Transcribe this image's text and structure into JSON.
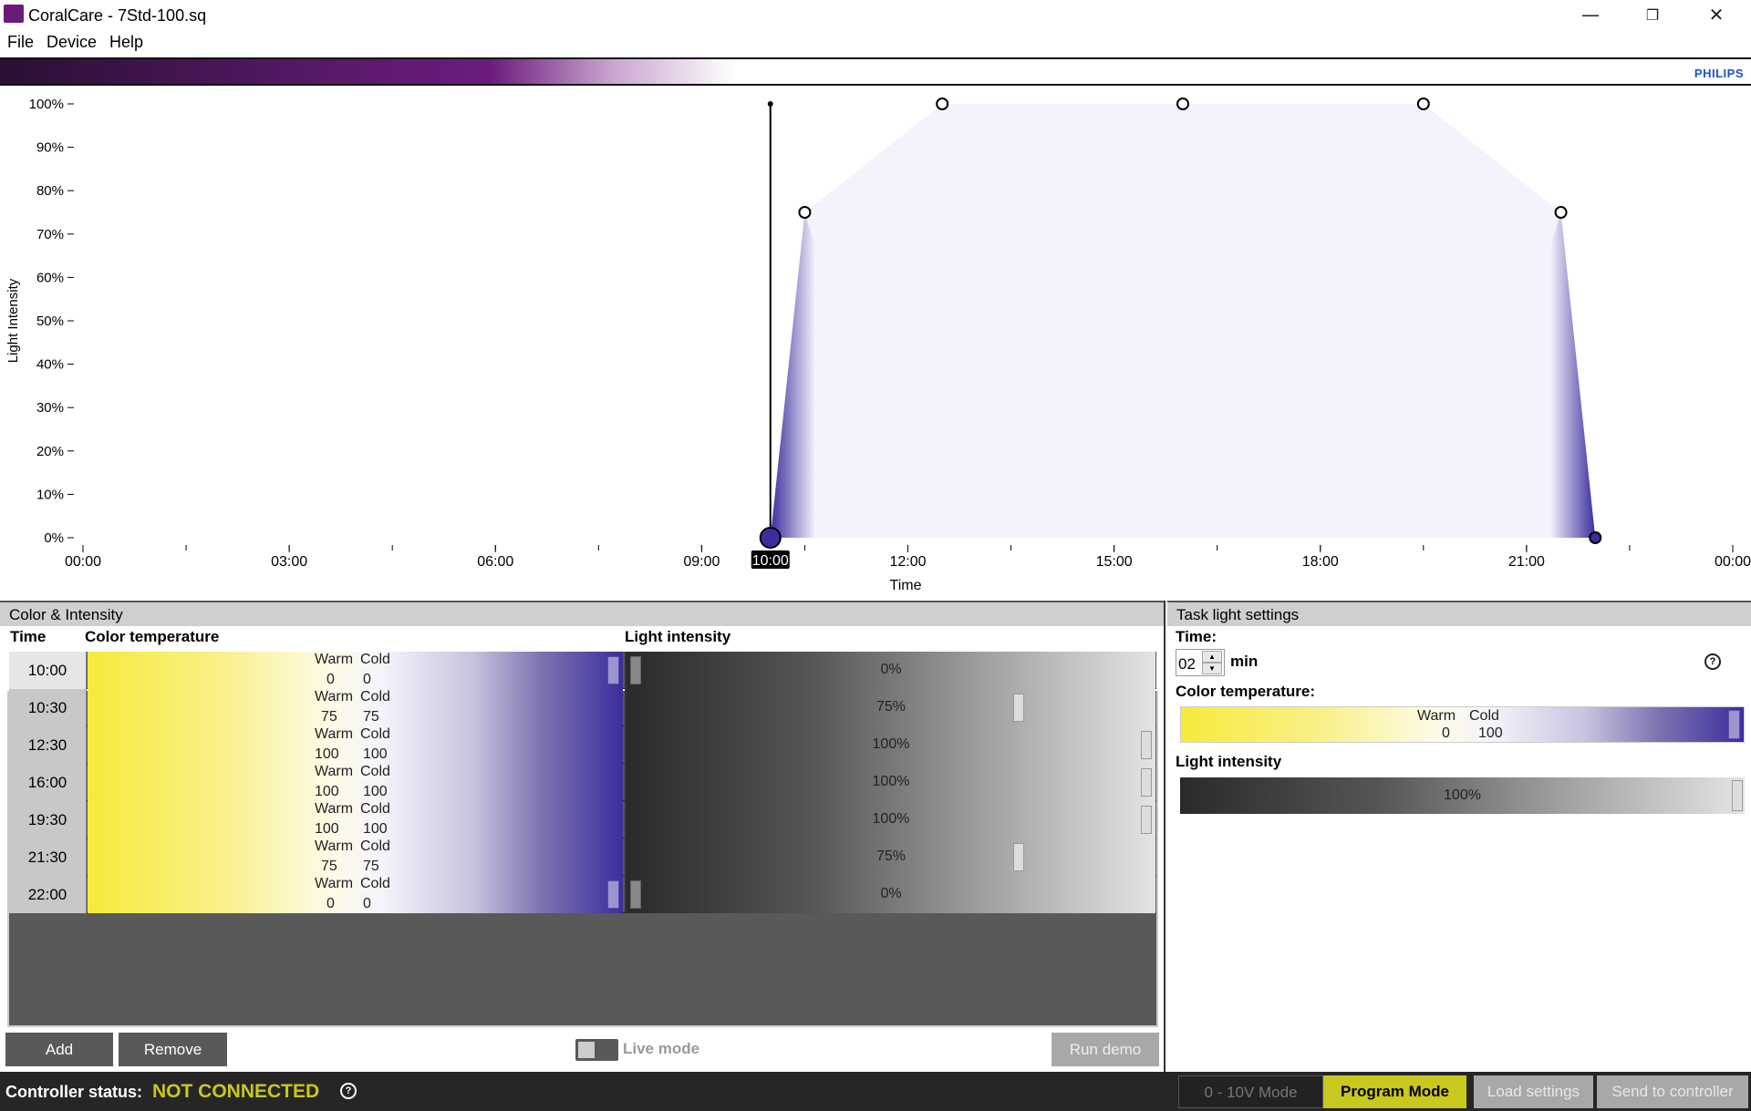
{
  "window": {
    "title": "CoralCare - 7Std-100.sq",
    "minimize_icon": "minimize-icon",
    "restore_icon": "restore-icon",
    "close_icon": "close-icon"
  },
  "menu": [
    "File",
    "Device",
    "Help"
  ],
  "brand": "PHILIPS",
  "chart_data": {
    "type": "area",
    "ylabel": "Light Intensity",
    "xlabel": "Time",
    "ylim": [
      0,
      100
    ],
    "yticks": [
      "0%",
      "10%",
      "20%",
      "30%",
      "40%",
      "50%",
      "60%",
      "70%",
      "80%",
      "90%",
      "100%"
    ],
    "xlim": [
      "00:00",
      "24:00"
    ],
    "xtick_labels": [
      "00:00",
      "03:00",
      "06:00",
      "09:00",
      "12:00",
      "15:00",
      "18:00",
      "21:00",
      "00:00"
    ],
    "current_time": "10:00",
    "points": [
      {
        "time": "10:00",
        "value": 0
      },
      {
        "time": "10:30",
        "value": 75
      },
      {
        "time": "12:30",
        "value": 100
      },
      {
        "time": "16:00",
        "value": 100
      },
      {
        "time": "19:30",
        "value": 100
      },
      {
        "time": "21:30",
        "value": 75
      },
      {
        "time": "22:00",
        "value": 0
      }
    ],
    "fill_color": "#f4f3fb",
    "edge_color": "#3a2e9e"
  },
  "color_intensity": {
    "title": "Color & Intensity",
    "headers": {
      "time": "Time",
      "color": "Color temperature",
      "intensity": "Light intensity"
    },
    "warm_label": "Warm",
    "cold_label": "Cold",
    "rows": [
      {
        "time": "10:00",
        "warm": "0",
        "cold": "0",
        "intensity": "0%",
        "level": 0,
        "selected": true
      },
      {
        "time": "10:30",
        "warm": "75",
        "cold": "75",
        "intensity": "75%",
        "level": 75
      },
      {
        "time": "12:30",
        "warm": "100",
        "cold": "100",
        "intensity": "100%",
        "level": 100
      },
      {
        "time": "16:00",
        "warm": "100",
        "cold": "100",
        "intensity": "100%",
        "level": 100
      },
      {
        "time": "19:30",
        "warm": "100",
        "cold": "100",
        "intensity": "100%",
        "level": 100
      },
      {
        "time": "21:30",
        "warm": "75",
        "cold": "75",
        "intensity": "75%",
        "level": 75
      },
      {
        "time": "22:00",
        "warm": "0",
        "cold": "0",
        "intensity": "0%",
        "level": 0
      }
    ],
    "add": "Add",
    "remove": "Remove",
    "live_mode": "Live mode",
    "run_demo": "Run demo"
  },
  "task_light": {
    "title": "Task light settings",
    "time_label": "Time:",
    "time_value": "02",
    "time_unit": "min",
    "color_label": "Color temperature:",
    "warm_label": "Warm",
    "cold_label": "Cold",
    "warm": "0",
    "cold": "100",
    "intensity_label": "Light intensity",
    "intensity": "100%"
  },
  "status": {
    "label": "Controller status:",
    "value": "NOT CONNECTED",
    "value_color": "#c8c81e",
    "mode_0_10v": "0 - 10V Mode",
    "mode_program": "Program Mode",
    "load": "Load settings",
    "send": "Send to controller"
  }
}
